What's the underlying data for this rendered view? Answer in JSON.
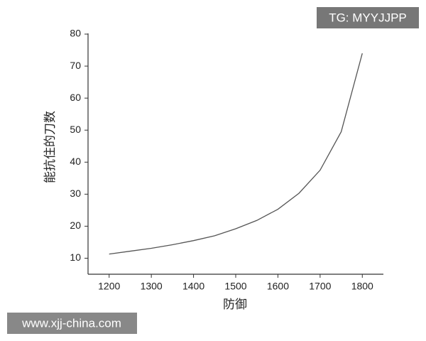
{
  "chart_data": {
    "type": "line",
    "x_label": "防御",
    "y_label": "能抗住的刀数",
    "x": [
      1200,
      1250,
      1300,
      1350,
      1400,
      1450,
      1500,
      1550,
      1600,
      1650,
      1700,
      1750,
      1800
    ],
    "series": [
      {
        "color": "#555555",
        "values": [
          11.3,
          12.2,
          13.1,
          14.2,
          15.5,
          17.0,
          19.2,
          21.8,
          25.3,
          30.3,
          37.5,
          49.5,
          74
        ]
      }
    ],
    "xlim": [
      1150,
      1850
    ],
    "xticks": [
      1200,
      1300,
      1400,
      1500,
      1600,
      1700,
      1800
    ],
    "ylim": [
      5,
      80
    ],
    "yticks": [
      10,
      20,
      30,
      40,
      50,
      60,
      70,
      80
    ],
    "annotations": [
      "TG: MYYJJPP",
      "www.xjj-china.com"
    ]
  }
}
